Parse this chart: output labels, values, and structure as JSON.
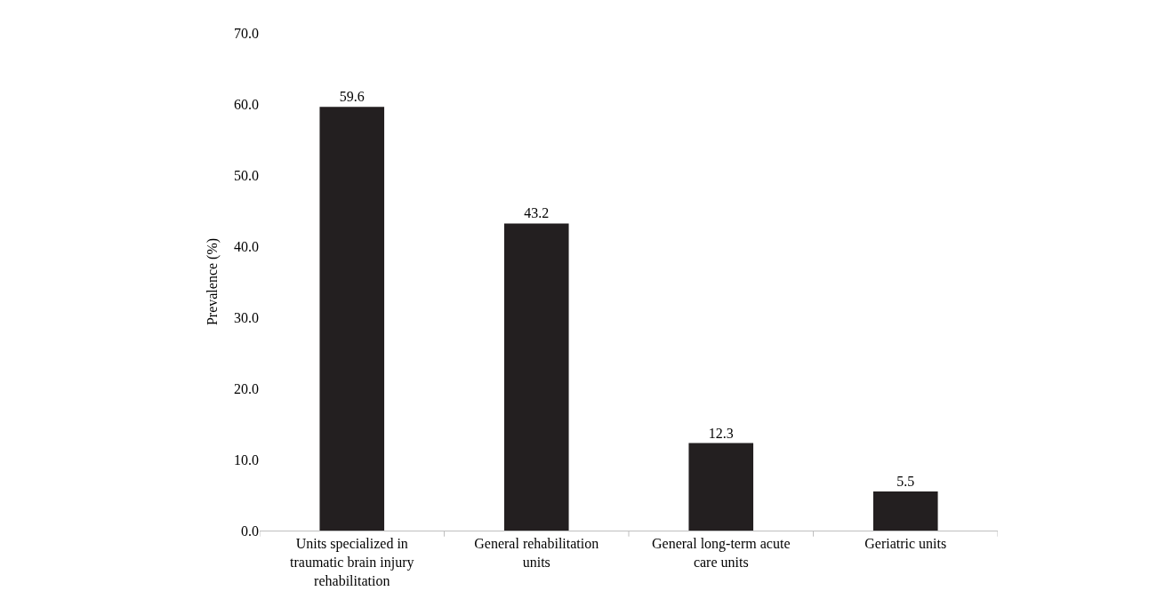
{
  "chart_data": {
    "type": "bar",
    "ylabel": "Prevalence (%)",
    "categories": [
      "Units specialized in traumatic brain injury rehabilitation",
      "General rehabilitation units",
      "General long-term acute care units",
      "Geriatric units"
    ],
    "values": [
      59.6,
      43.2,
      12.3,
      5.5
    ],
    "color": "#231f20",
    "ylim": [
      0,
      70
    ],
    "yticks": [
      {
        "value": 0,
        "label": "0.0"
      },
      {
        "value": 10,
        "label": "10.0"
      },
      {
        "value": 20,
        "label": "20.0"
      },
      {
        "value": 30,
        "label": "30.0"
      },
      {
        "value": 40,
        "label": "40.0"
      },
      {
        "value": 50,
        "label": "50.0"
      },
      {
        "value": 60,
        "label": "60.0"
      },
      {
        "value": 70,
        "label": "70.0"
      }
    ],
    "data_labels": true
  }
}
